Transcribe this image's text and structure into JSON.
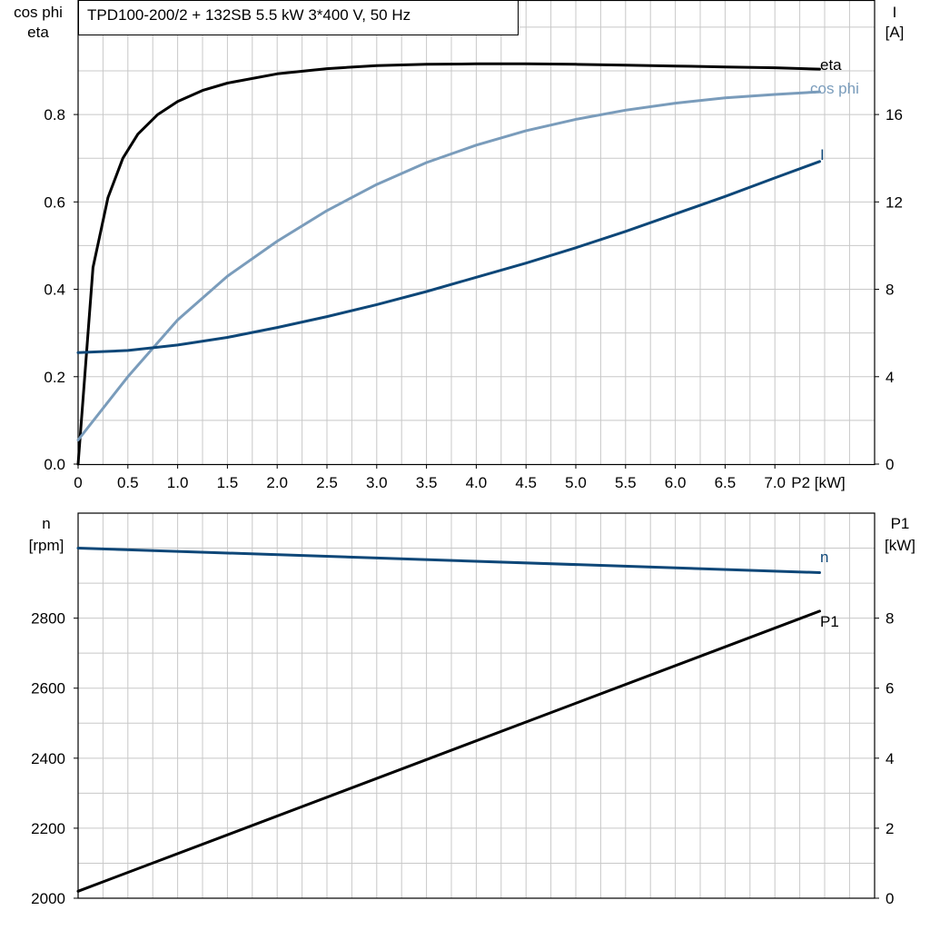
{
  "title": "TPD100-200/2 + 132SB   5.5 kW   3*400 V, 50 Hz",
  "colors": {
    "eta": "#000000",
    "cos_phi": "#7a9cbb",
    "current": "#0e4778",
    "speed": "#0e4778",
    "p1": "#000000",
    "grid": "#c8c8c8"
  },
  "chart_data": [
    {
      "type": "line",
      "x_label": "P2 [kW]",
      "x_ticks": [
        "0",
        "0.5",
        "1.0",
        "1.5",
        "2.0",
        "2.5",
        "3.0",
        "3.5",
        "4.0",
        "4.5",
        "5.0",
        "5.5",
        "6.0",
        "6.5",
        "7.0"
      ],
      "xlim": [
        0,
        8
      ],
      "left_axis": {
        "label_lines": [
          "cos phi",
          "eta"
        ],
        "ylim": [
          0,
          1.06
        ],
        "ticks": [
          "0.0",
          "0.2",
          "0.4",
          "0.6",
          "0.8"
        ]
      },
      "right_axis": {
        "label_lines": [
          "I",
          "[A]"
        ],
        "ylim": [
          0,
          21.2
        ],
        "ticks": [
          "0",
          "4",
          "8",
          "12",
          "16"
        ]
      },
      "grid": true,
      "series": [
        {
          "name": "eta",
          "axis": "left",
          "x": [
            0,
            0.15,
            0.3,
            0.45,
            0.6,
            0.8,
            1.0,
            1.25,
            1.5,
            2.0,
            2.5,
            3.0,
            3.5,
            4.0,
            4.5,
            5.0,
            5.5,
            6.0,
            6.5,
            7.0,
            7.45
          ],
          "y": [
            0,
            0.45,
            0.61,
            0.7,
            0.755,
            0.8,
            0.83,
            0.855,
            0.872,
            0.893,
            0.905,
            0.912,
            0.915,
            0.916,
            0.916,
            0.915,
            0.913,
            0.911,
            0.909,
            0.907,
            0.904
          ]
        },
        {
          "name": "cos phi",
          "axis": "left",
          "x": [
            0,
            0.5,
            1.0,
            1.5,
            2.0,
            2.5,
            3.0,
            3.5,
            4.0,
            4.5,
            5.0,
            5.5,
            6.0,
            6.5,
            7.0,
            7.45
          ],
          "y": [
            0.055,
            0.2,
            0.33,
            0.43,
            0.51,
            0.58,
            0.64,
            0.69,
            0.73,
            0.763,
            0.789,
            0.81,
            0.826,
            0.838,
            0.846,
            0.852
          ]
        },
        {
          "name": "I",
          "axis": "right",
          "x": [
            0,
            0.5,
            1.0,
            1.5,
            2.0,
            2.5,
            3.0,
            3.5,
            4.0,
            4.5,
            5.0,
            5.5,
            6.0,
            6.5,
            7.0,
            7.45
          ],
          "y": [
            5.1,
            5.2,
            5.45,
            5.8,
            6.25,
            6.75,
            7.3,
            7.9,
            8.55,
            9.2,
            9.9,
            10.65,
            11.45,
            12.25,
            13.1,
            13.85
          ]
        }
      ]
    },
    {
      "type": "line",
      "x_label": "",
      "xlim": [
        0,
        8
      ],
      "left_axis": {
        "label_lines": [
          "n",
          "[rpm]"
        ],
        "ylim": [
          2000,
          3100
        ],
        "ticks": [
          "2000",
          "2200",
          "2400",
          "2600",
          "2800"
        ]
      },
      "right_axis": {
        "label_lines": [
          "P1",
          "[kW]"
        ],
        "ylim": [
          0,
          11
        ],
        "ticks": [
          "0",
          "2",
          "4",
          "6",
          "8"
        ]
      },
      "grid": true,
      "series": [
        {
          "name": "n",
          "axis": "left",
          "x": [
            0,
            7.45
          ],
          "y": [
            3000,
            2930
          ]
        },
        {
          "name": "P1",
          "axis": "right",
          "x": [
            0,
            7.45
          ],
          "y": [
            0.2,
            8.2
          ]
        }
      ]
    }
  ]
}
